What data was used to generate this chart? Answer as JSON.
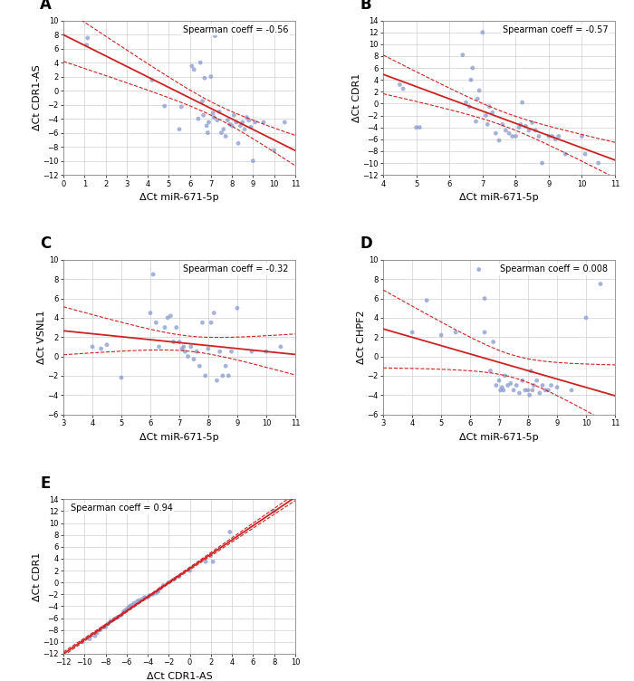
{
  "panels": [
    {
      "label": "A",
      "xlabel": "ΔCt miR-671-5p",
      "ylabel": "ΔCt CDR1-AS",
      "spearman": "-0.56",
      "spearman_loc": "upper right",
      "xlim": [
        0,
        11
      ],
      "ylim": [
        -12,
        10
      ],
      "xticks": [
        0,
        1,
        2,
        3,
        4,
        5,
        6,
        7,
        8,
        9,
        10,
        11
      ],
      "yticks": [
        -12,
        -10,
        -8,
        -6,
        -4,
        -2,
        0,
        2,
        4,
        6,
        8,
        10
      ],
      "x": [
        1.1,
        1.15,
        4.2,
        4.8,
        5.5,
        5.6,
        6.1,
        6.2,
        6.4,
        6.5,
        6.6,
        6.65,
        6.7,
        6.8,
        6.85,
        6.9,
        7.0,
        7.1,
        7.15,
        7.2,
        7.3,
        7.4,
        7.5,
        7.6,
        7.7,
        7.8,
        7.9,
        8.0,
        8.1,
        8.2,
        8.3,
        8.4,
        8.5,
        8.6,
        8.7,
        8.8,
        8.9,
        9.0,
        9.1,
        9.5,
        10.0,
        10.5
      ],
      "y": [
        6.5,
        7.5,
        1.5,
        -2.2,
        -5.5,
        -2.3,
        3.5,
        3.0,
        -4.0,
        4.0,
        -1.5,
        -3.5,
        1.8,
        -5.0,
        -6.0,
        -4.5,
        2.0,
        -3.2,
        -3.8,
        7.8,
        -4.2,
        -3.0,
        -6.0,
        -5.5,
        -6.5,
        -4.2,
        -4.8,
        -5.0,
        -3.5,
        -4.5,
        -7.5,
        -5.0,
        -4.5,
        -5.5,
        -3.8,
        -4.2,
        -5.2,
        -10.0,
        -4.5,
        -4.5,
        -8.5,
        -4.5
      ]
    },
    {
      "label": "B",
      "xlabel": "ΔCt miR-671-5p",
      "ylabel": "ΔCt CDR1",
      "spearman": "-0.57",
      "spearman_loc": "upper right",
      "xlim": [
        4,
        11
      ],
      "ylim": [
        -12,
        14
      ],
      "xticks": [
        4,
        5,
        6,
        7,
        8,
        9,
        10,
        11
      ],
      "yticks": [
        -12,
        -10,
        -8,
        -6,
        -4,
        -2,
        0,
        2,
        4,
        6,
        8,
        10,
        12,
        14
      ],
      "x": [
        4.5,
        4.6,
        5.0,
        5.1,
        6.4,
        6.5,
        6.6,
        6.65,
        6.7,
        6.8,
        6.85,
        6.9,
        7.0,
        7.1,
        7.15,
        7.2,
        7.3,
        7.4,
        7.5,
        7.6,
        7.7,
        7.8,
        7.9,
        8.0,
        8.1,
        8.15,
        8.2,
        8.3,
        8.4,
        8.5,
        8.6,
        8.7,
        8.8,
        9.0,
        9.1,
        9.2,
        9.3,
        9.5,
        10.0,
        10.1,
        10.5
      ],
      "y": [
        3.2,
        2.5,
        -4.0,
        -4.0,
        8.2,
        0.2,
        -0.5,
        4.0,
        6.0,
        -3.0,
        0.8,
        2.2,
        12.0,
        -2.0,
        -3.5,
        -0.5,
        -1.5,
        -5.0,
        -6.2,
        -3.5,
        -4.5,
        -5.0,
        -5.5,
        -5.5,
        -4.0,
        -3.5,
        0.2,
        -3.8,
        -4.5,
        -3.2,
        -4.5,
        -5.5,
        -10.0,
        -5.5,
        -5.5,
        -6.0,
        -5.5,
        -8.5,
        -5.5,
        -8.5,
        -10.0
      ]
    },
    {
      "label": "C",
      "xlabel": "ΔCt miR-671-5p",
      "ylabel": "ΔCt VSNL1",
      "spearman": "-0.32",
      "spearman_loc": "upper right",
      "xlim": [
        3,
        11
      ],
      "ylim": [
        -6,
        10
      ],
      "xticks": [
        3,
        4,
        5,
        6,
        7,
        8,
        9,
        10,
        11
      ],
      "yticks": [
        -6,
        -4,
        -2,
        0,
        2,
        4,
        6,
        8,
        10
      ],
      "x": [
        4.0,
        4.3,
        4.5,
        5.0,
        6.0,
        6.1,
        6.2,
        6.3,
        6.5,
        6.6,
        6.7,
        6.8,
        6.9,
        7.0,
        7.1,
        7.15,
        7.2,
        7.3,
        7.4,
        7.5,
        7.6,
        7.7,
        7.8,
        7.9,
        8.0,
        8.1,
        8.2,
        8.3,
        8.4,
        8.5,
        8.6,
        8.7,
        8.8,
        9.0,
        9.5,
        10.0,
        10.5
      ],
      "y": [
        1.0,
        0.8,
        1.2,
        -2.2,
        4.5,
        8.5,
        3.5,
        1.0,
        3.0,
        4.0,
        4.2,
        1.5,
        3.0,
        1.5,
        0.8,
        1.0,
        0.5,
        0.0,
        1.0,
        -0.3,
        0.5,
        -1.0,
        3.5,
        -2.0,
        0.8,
        3.5,
        4.5,
        -2.5,
        0.5,
        -2.0,
        -1.0,
        -2.0,
        0.5,
        5.0,
        0.5,
        0.5,
        1.0
      ]
    },
    {
      "label": "D",
      "xlabel": "ΔCt miR-671-5p",
      "ylabel": "ΔCt CHPF2",
      "spearman": "0.008",
      "spearman_loc": "upper right",
      "xlim": [
        3,
        11
      ],
      "ylim": [
        -6,
        10
      ],
      "xticks": [
        3,
        4,
        5,
        6,
        7,
        8,
        9,
        10,
        11
      ],
      "yticks": [
        -6,
        -4,
        -2,
        0,
        2,
        4,
        6,
        8,
        10
      ],
      "x": [
        4.0,
        4.5,
        5.0,
        5.5,
        6.3,
        6.5,
        6.5,
        6.7,
        6.8,
        6.9,
        7.0,
        7.05,
        7.1,
        7.15,
        7.2,
        7.3,
        7.4,
        7.5,
        7.6,
        7.7,
        7.8,
        7.9,
        8.0,
        8.05,
        8.1,
        8.15,
        8.2,
        8.3,
        8.4,
        8.5,
        8.6,
        8.7,
        8.8,
        9.0,
        9.5,
        10.0,
        10.5
      ],
      "y": [
        2.5,
        5.8,
        2.2,
        2.5,
        9.0,
        6.0,
        2.5,
        -1.5,
        1.5,
        -3.0,
        -2.5,
        -3.5,
        -3.2,
        -3.5,
        -2.0,
        -3.0,
        -2.8,
        -3.5,
        -3.0,
        -3.8,
        -2.5,
        -3.5,
        -3.5,
        -4.0,
        -1.5,
        -3.5,
        -3.0,
        -2.5,
        -3.8,
        -3.0,
        -3.5,
        -3.5,
        -3.0,
        -3.2,
        -3.5,
        4.0,
        7.5
      ]
    },
    {
      "label": "E",
      "xlabel": "ΔCt CDR1-AS",
      "ylabel": "ΔCt CDR1",
      "spearman": "0.94",
      "spearman_loc": "upper left",
      "xlim": [
        -12,
        10
      ],
      "ylim": [
        -12,
        14
      ],
      "xticks": [
        -12,
        -10,
        -8,
        -6,
        -4,
        -2,
        0,
        2,
        4,
        6,
        8,
        10
      ],
      "yticks": [
        -12,
        -10,
        -8,
        -6,
        -4,
        -2,
        0,
        2,
        4,
        6,
        8,
        10,
        12,
        14
      ],
      "x": [
        -10.2,
        -9.5,
        -9.0,
        -8.8,
        -8.5,
        -8.2,
        -8.0,
        -7.8,
        -7.5,
        -7.2,
        -7.0,
        -6.8,
        -6.5,
        -6.3,
        -6.2,
        -6.0,
        -5.8,
        -5.7,
        -5.5,
        -5.3,
        -5.0,
        -4.8,
        -4.5,
        -4.3,
        -4.0,
        -3.8,
        -3.5,
        -3.2,
        -3.0,
        -2.8,
        -2.5,
        -2.0,
        -1.5,
        -1.0,
        0.0,
        1.5,
        2.0,
        2.2,
        3.8,
        8.0
      ],
      "y": [
        -10.0,
        -9.5,
        -9.0,
        -8.5,
        -8.0,
        -7.5,
        -7.5,
        -7.0,
        -6.5,
        -6.2,
        -6.0,
        -5.8,
        -5.5,
        -5.0,
        -4.8,
        -4.5,
        -4.2,
        -4.0,
        -3.8,
        -3.5,
        -3.2,
        -3.0,
        -2.8,
        -2.5,
        -2.5,
        -2.2,
        -2.0,
        -1.8,
        -1.5,
        -1.0,
        -0.5,
        0.0,
        0.5,
        1.0,
        2.0,
        3.5,
        4.5,
        3.5,
        8.5,
        12.0
      ]
    }
  ],
  "scatter_color": "#8899cc",
  "scatter_alpha": 0.75,
  "scatter_size": 12,
  "line_color": "#cc2222",
  "ci_color": "#cc2222",
  "grid_color": "#d0d0d0",
  "bg_color": "#ffffff",
  "fig_bg": "#ffffff"
}
